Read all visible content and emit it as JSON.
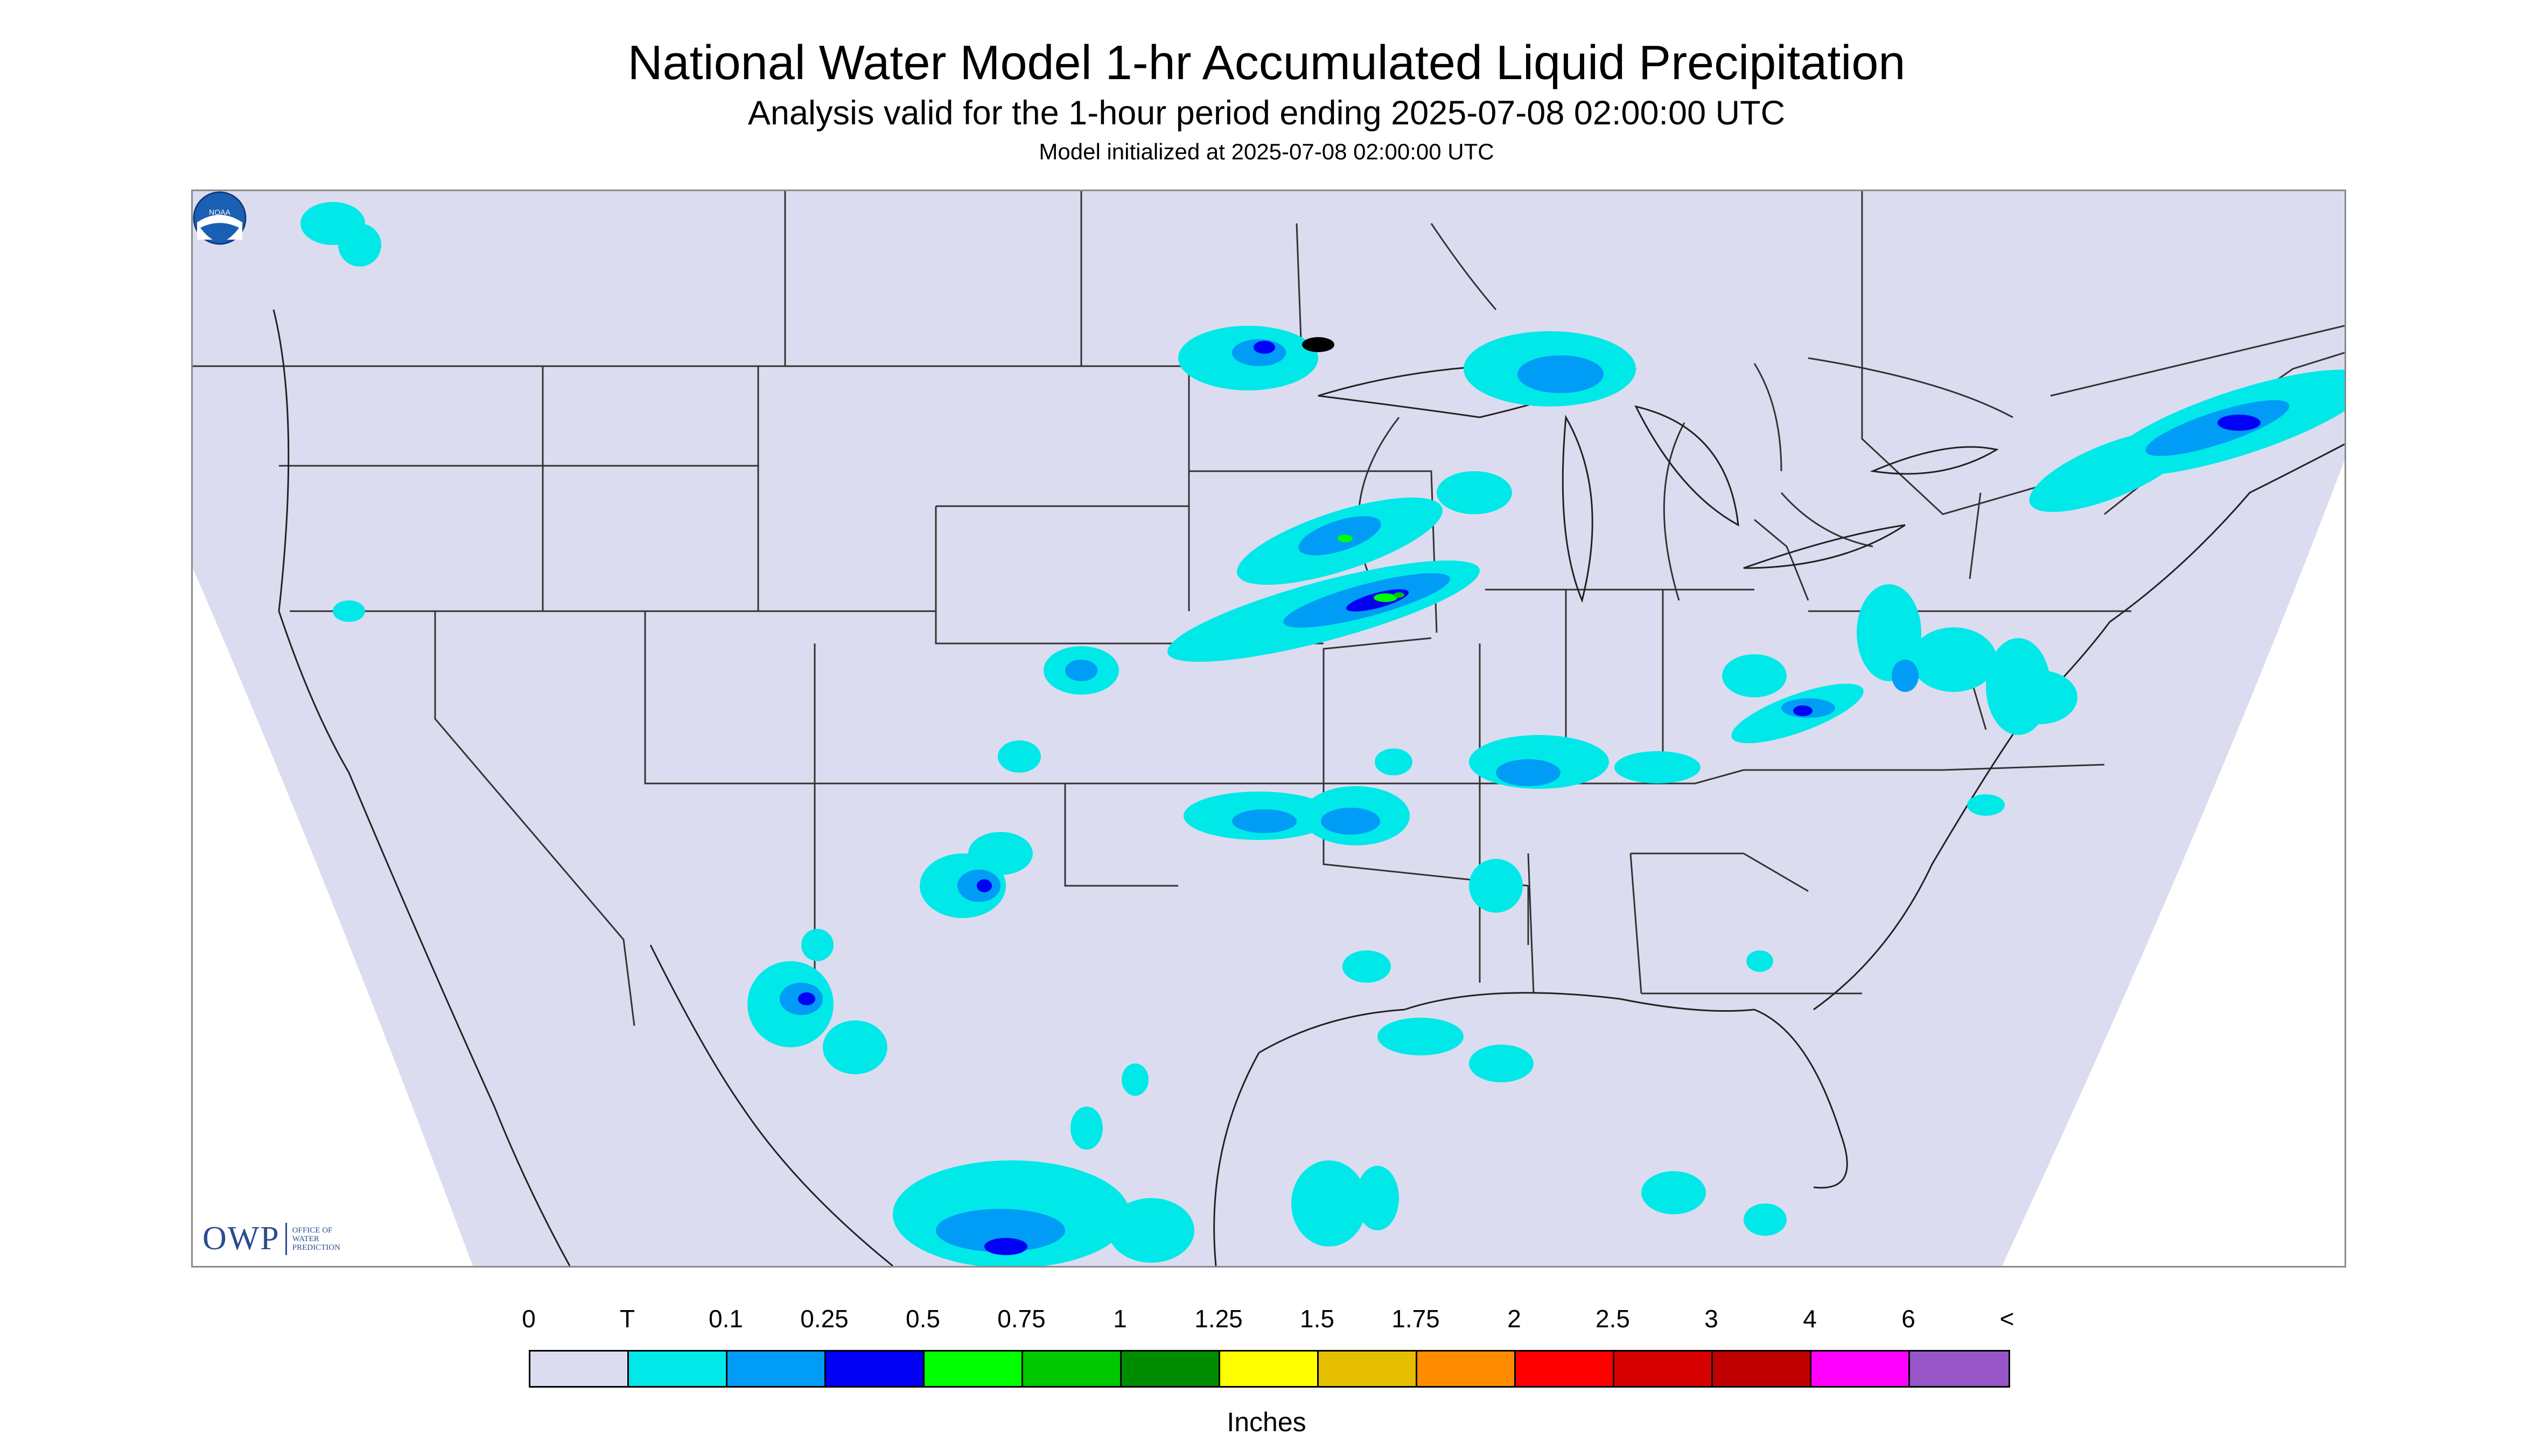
{
  "header": {
    "title": "National Water Model 1-hr Accumulated Liquid Precipitation",
    "subtitle": "Analysis valid for the 1-hour period ending 2025-07-08 02:00:00 UTC",
    "init_line": "Model initialized at 2025-07-08 02:00:00 UTC"
  },
  "map": {
    "background_color": "#dcdcf0",
    "outside_color": "#ffffff",
    "boundary_color": "#333333",
    "logos": {
      "owp_mark": "OWP",
      "owp_text_lines": [
        "OFFICE OF",
        "WATER",
        "PREDICTION"
      ],
      "noaa_icon": "noaa-logo-icon",
      "noaa_text": "NOAA"
    }
  },
  "legend": {
    "labels": [
      "0",
      "T",
      "0.1",
      "0.25",
      "0.5",
      "0.75",
      "1",
      "1.25",
      "1.5",
      "1.75",
      "2",
      "2.5",
      "3",
      "4",
      "6",
      "<"
    ],
    "colors": [
      "#dcdcf0",
      "#00e8e8",
      "#009cf5",
      "#0000f5",
      "#00ff00",
      "#00c800",
      "#008c00",
      "#ffff00",
      "#e6be00",
      "#ff8c00",
      "#ff0000",
      "#d70000",
      "#c00000",
      "#ff00ff",
      "#9656c8"
    ],
    "units": "Inches"
  }
}
